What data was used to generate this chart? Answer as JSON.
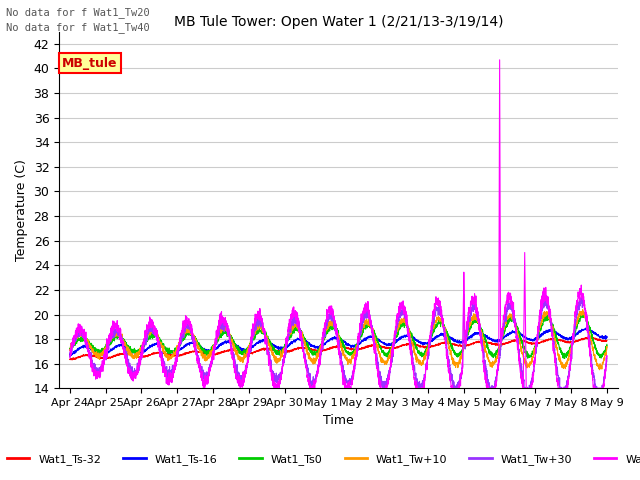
{
  "title": "MB Tule Tower: Open Water 1 (2/21/13-3/19/14)",
  "note_line1": "No data for f Wat1_Tw20",
  "note_line2": "No data for f Wat1_Tw40",
  "ylabel": "Temperature (C)",
  "xlabel": "Time",
  "ylim": [
    14,
    43
  ],
  "yticks": [
    14,
    16,
    18,
    20,
    22,
    24,
    26,
    28,
    30,
    32,
    34,
    36,
    38,
    40,
    42
  ],
  "legend_label": "MB_tule",
  "legend_bg": "#FFFF99",
  "legend_border": "#FF0000",
  "series_colors": {
    "Wat1_Ts-32": "#FF0000",
    "Wat1_Ts-16": "#0000FF",
    "Wat1_Ts0": "#00CC00",
    "Wat1_Tw+10": "#FF9900",
    "Wat1_Tw+30": "#9933FF",
    "Wat1_Tw+50": "#FF00FF"
  },
  "background_color": "#FFFFFF",
  "grid_color": "#CCCCCC",
  "xticklabels": [
    "Apr 24",
    "Apr 25",
    "Apr 26",
    "Apr 27",
    "Apr 28",
    "Apr 29",
    "Apr 30",
    "May 1",
    "May 2",
    "May 3",
    "May 4",
    "May 5",
    "May 6",
    "May 7",
    "May 8",
    "May 9"
  ]
}
